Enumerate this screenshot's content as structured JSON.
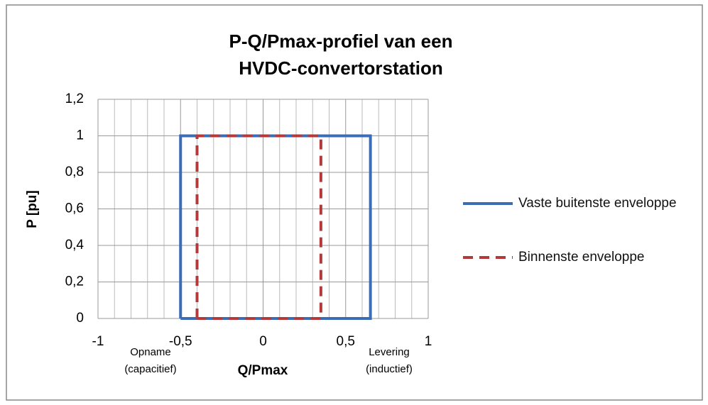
{
  "chart_data": {
    "type": "line",
    "title": [
      "P-Q/Pmax-profiel van een",
      "HVDC-convertorstation"
    ],
    "x_label": "Q/Pmax",
    "y_label": "P [pu]",
    "annotations": [
      [
        "Opname",
        "(capacitief)"
      ],
      [
        "Levering",
        "(inductief)"
      ]
    ],
    "xlim": [
      -1,
      1
    ],
    "ylim": [
      0,
      1.2
    ],
    "xticks": [
      -1,
      {
        "value": -0.5,
        "label": "-0,5"
      },
      0,
      {
        "value": 0.5,
        "label": "0,5"
      },
      1
    ],
    "yticks": [
      0,
      {
        "value": 0.2,
        "label": "0,2"
      },
      {
        "value": 0.4,
        "label": "0,4"
      },
      {
        "value": 0.6,
        "label": "0,6"
      },
      {
        "value": 0.8,
        "label": "0,8"
      },
      1,
      {
        "value": 1.2,
        "label": "1,2"
      }
    ],
    "xminorticks": [
      -0.9,
      -0.8,
      -0.7,
      -0.6,
      -0.4,
      -0.3,
      -0.2,
      -0.1,
      0.1,
      0.2,
      0.3,
      0.4,
      0.6,
      0.7,
      0.8,
      0.9
    ],
    "grid": true,
    "legend": "right",
    "series": [
      {
        "name": "Vaste buitenste enveloppe",
        "color": "#3a6db5",
        "dashed": false,
        "x": [
          -0.5,
          -0.5,
          0.65,
          0.65,
          -0.5
        ],
        "values": [
          0,
          1,
          1,
          0,
          0
        ]
      },
      {
        "name": "Binnenste enveloppe",
        "color": "#b33a3a",
        "dashed": true,
        "x": [
          -0.4,
          -0.4,
          0.35,
          0.35,
          -0.4
        ],
        "values": [
          0,
          1,
          1,
          0,
          0
        ]
      }
    ]
  }
}
